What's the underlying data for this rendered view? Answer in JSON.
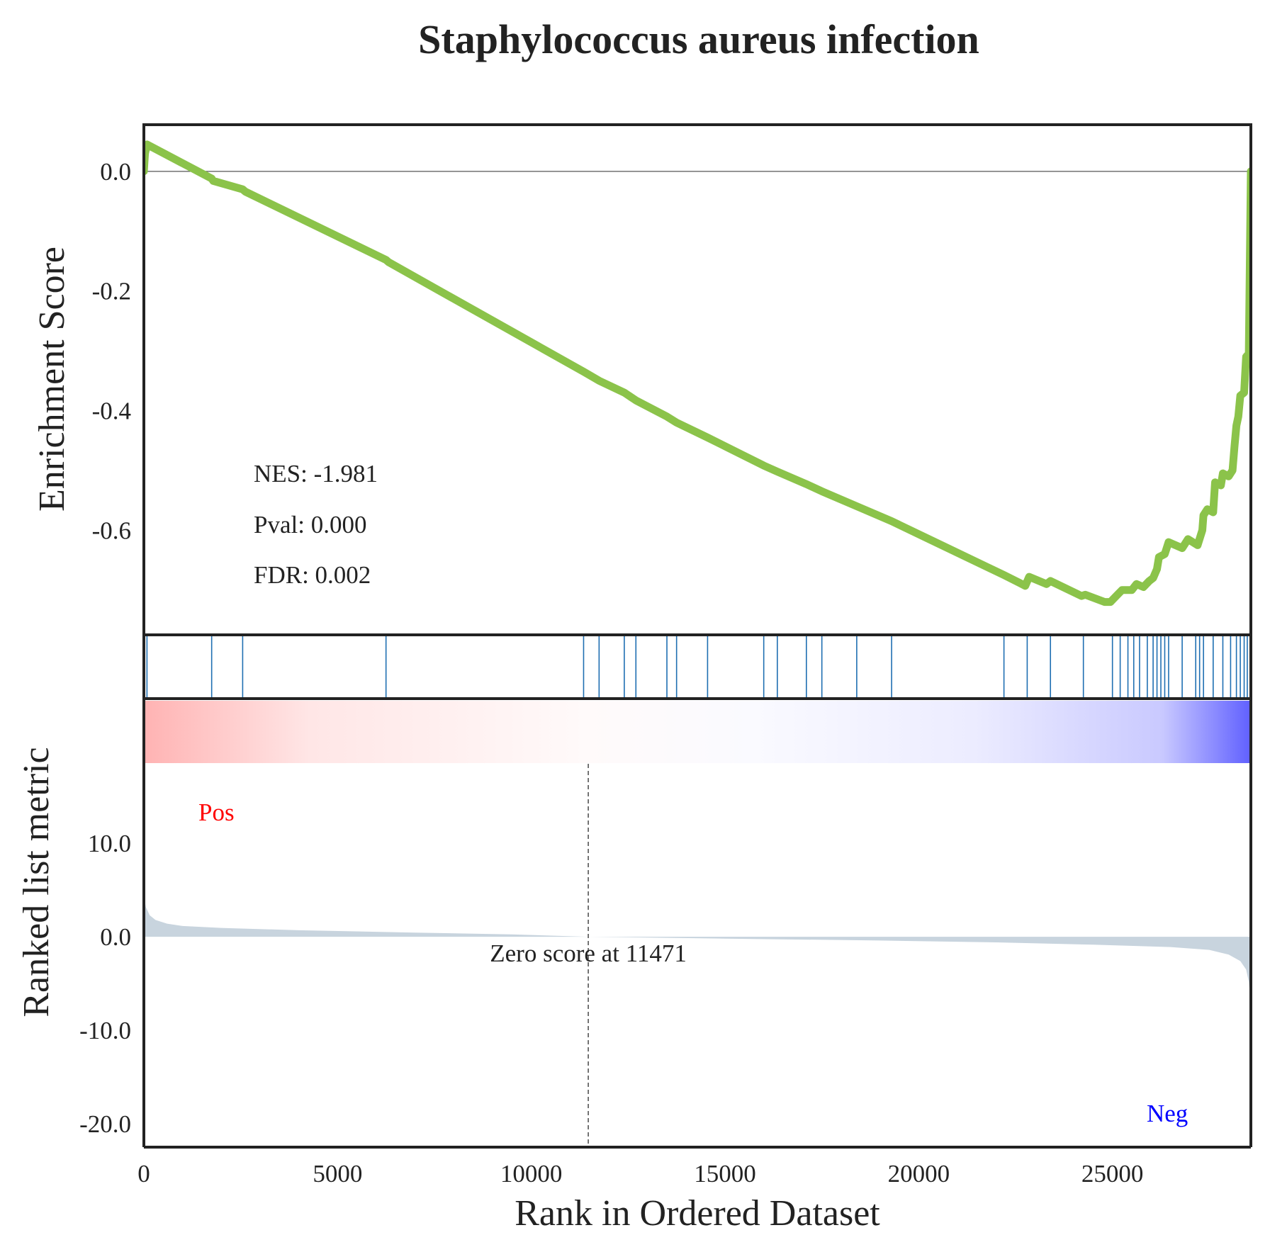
{
  "chart_data": {
    "type": "line",
    "title": "Staphylococcus aureus infection",
    "xlabel": "Rank in Ordered Dataset",
    "xlim": [
      0,
      28573
    ],
    "x_ticks": [
      "0",
      "5000",
      "10000",
      "15000",
      "20000",
      "25000"
    ],
    "x_tick_values": [
      0,
      5000,
      10000,
      15000,
      20000,
      25000
    ],
    "colors": {
      "es_line": "#8bc34a",
      "hits": "#1f6fb2",
      "fill": "#c8d4de",
      "pos_text": "#ff0000",
      "neg_text": "#0000ff",
      "frame": "#222222",
      "gradient_pos": "#ff8080",
      "gradient_neg": "#6060ff"
    },
    "enrichment": {
      "ylabel": "Enrichment Score",
      "ylim": [
        -0.775,
        0.078
      ],
      "y_ticks": [
        "0.0",
        "-0.2",
        "-0.4",
        "-0.6"
      ],
      "y_tick_values": [
        0.0,
        -0.2,
        -0.4,
        -0.6
      ],
      "zero_line": true,
      "points": [
        [
          0,
          0.0
        ],
        [
          30,
          0.03
        ],
        [
          80,
          0.045
        ],
        [
          1750,
          -0.012
        ],
        [
          1790,
          -0.016
        ],
        [
          2550,
          -0.03
        ],
        [
          2620,
          -0.034
        ],
        [
          6250,
          -0.148
        ],
        [
          6320,
          -0.152
        ],
        [
          11350,
          -0.335
        ],
        [
          11750,
          -0.35
        ],
        [
          12400,
          -0.37
        ],
        [
          12700,
          -0.383
        ],
        [
          13500,
          -0.41
        ],
        [
          13750,
          -0.42
        ],
        [
          14550,
          -0.445
        ],
        [
          16000,
          -0.492
        ],
        [
          16350,
          -0.502
        ],
        [
          17100,
          -0.523
        ],
        [
          17500,
          -0.535
        ],
        [
          18400,
          -0.56
        ],
        [
          19300,
          -0.585
        ],
        [
          22200,
          -0.675
        ],
        [
          22600,
          -0.688
        ],
        [
          22750,
          -0.693
        ],
        [
          22850,
          -0.678
        ],
        [
          23300,
          -0.69
        ],
        [
          23400,
          -0.685
        ],
        [
          24200,
          -0.71
        ],
        [
          24300,
          -0.708
        ],
        [
          24800,
          -0.72
        ],
        [
          24950,
          -0.72
        ],
        [
          25100,
          -0.71
        ],
        [
          25250,
          -0.7
        ],
        [
          25500,
          -0.7
        ],
        [
          25620,
          -0.69
        ],
        [
          25800,
          -0.695
        ],
        [
          25950,
          -0.685
        ],
        [
          26050,
          -0.68
        ],
        [
          26150,
          -0.665
        ],
        [
          26200,
          -0.645
        ],
        [
          26350,
          -0.64
        ],
        [
          26450,
          -0.62
        ],
        [
          26800,
          -0.63
        ],
        [
          26950,
          -0.615
        ],
        [
          27200,
          -0.625
        ],
        [
          27320,
          -0.6
        ],
        [
          27350,
          -0.575
        ],
        [
          27450,
          -0.565
        ],
        [
          27600,
          -0.57
        ],
        [
          27650,
          -0.52
        ],
        [
          27800,
          -0.525
        ],
        [
          27850,
          -0.505
        ],
        [
          28000,
          -0.51
        ],
        [
          28100,
          -0.5
        ],
        [
          28150,
          -0.46
        ],
        [
          28200,
          -0.425
        ],
        [
          28250,
          -0.41
        ],
        [
          28300,
          -0.375
        ],
        [
          28400,
          -0.37
        ],
        [
          28450,
          -0.31
        ],
        [
          28520,
          -0.305
        ],
        [
          28573,
          0.0
        ]
      ]
    },
    "stats": [
      "NES: -1.981",
      "Pval: 0.000",
      "FDR: 0.002"
    ],
    "hits": [
      80,
      1750,
      2550,
      6250,
      11350,
      11750,
      12400,
      12700,
      13500,
      13750,
      14550,
      16000,
      16350,
      17100,
      17500,
      18400,
      19300,
      22200,
      22800,
      23400,
      24250,
      25000,
      25200,
      25400,
      25550,
      25700,
      25900,
      26050,
      26150,
      26250,
      26350,
      26450,
      26800,
      27150,
      27250,
      27350,
      27600,
      27850,
      28050,
      28200,
      28300,
      28400,
      28480
    ],
    "ranked_metric": {
      "ylabel": "Ranked list metric",
      "ylim": [
        -22.5,
        18.5
      ],
      "y_ticks": [
        "10.0",
        "0.0",
        "-10.0",
        "-20.0"
      ],
      "y_tick_values": [
        10,
        0,
        -10,
        -20
      ],
      "pos_label": "Pos",
      "neg_label": "Neg",
      "zero_cross_label": "Zero score at 11471",
      "zero_cross": 11471,
      "curve": [
        [
          0,
          4.5
        ],
        [
          50,
          3.2
        ],
        [
          150,
          2.3
        ],
        [
          300,
          1.8
        ],
        [
          600,
          1.4
        ],
        [
          1000,
          1.15
        ],
        [
          2000,
          0.95
        ],
        [
          4000,
          0.7
        ],
        [
          7000,
          0.45
        ],
        [
          9500,
          0.25
        ],
        [
          11471,
          0.0
        ],
        [
          15000,
          -0.2
        ],
        [
          19000,
          -0.4
        ],
        [
          22000,
          -0.6
        ],
        [
          24500,
          -0.85
        ],
        [
          26500,
          -1.1
        ],
        [
          27500,
          -1.4
        ],
        [
          28000,
          -1.9
        ],
        [
          28300,
          -2.6
        ],
        [
          28450,
          -3.5
        ],
        [
          28520,
          -4.8
        ],
        [
          28573,
          -7.0
        ]
      ]
    }
  }
}
